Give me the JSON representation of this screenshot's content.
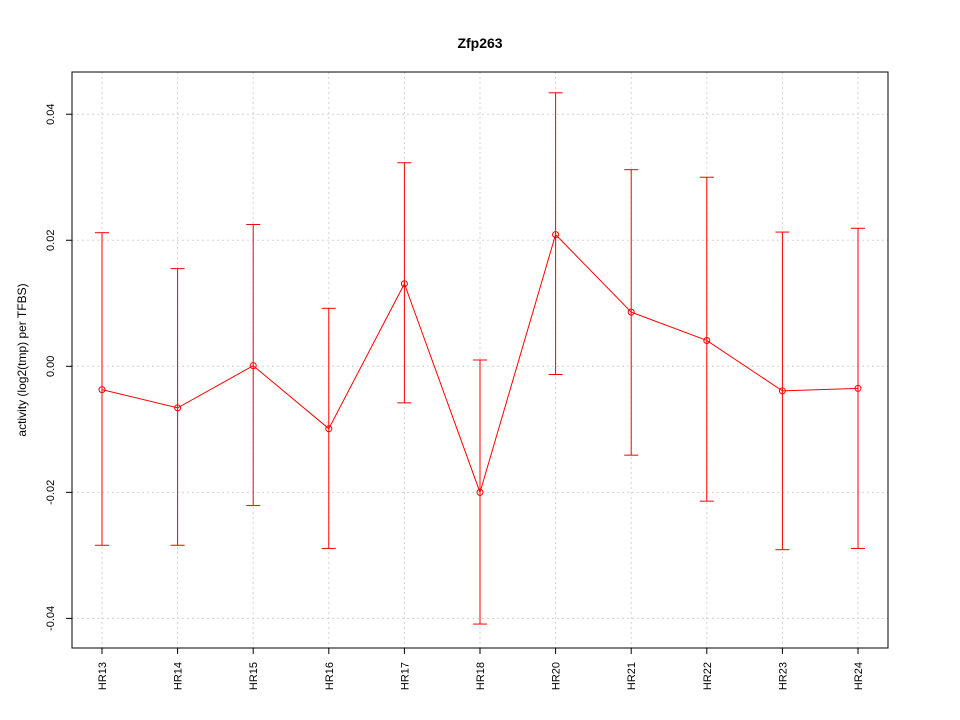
{
  "chart_data": {
    "type": "line",
    "title": "Zfp263",
    "xlabel": "",
    "ylabel": "activity (log2(tmp) per TFBS)",
    "categories": [
      "HR13",
      "HR14",
      "HR15",
      "HR16",
      "HR17",
      "HR18",
      "HR20",
      "HR21",
      "HR22",
      "HR23",
      "HR24"
    ],
    "series": [
      {
        "values": [
          -0.0037,
          -0.0066,
          0.0001,
          -0.0099,
          0.0131,
          -0.02,
          0.0209,
          0.0086,
          0.0041,
          -0.0039,
          -0.0035
        ],
        "error_upper": [
          0.0212,
          0.0155,
          0.0225,
          0.0092,
          0.0323,
          0.001,
          0.0434,
          0.0312,
          0.03,
          0.0213,
          0.0219
        ],
        "error_lower": [
          -0.0284,
          -0.0284,
          -0.0221,
          -0.0289,
          -0.0058,
          -0.0409,
          -0.0013,
          -0.0141,
          -0.0214,
          -0.0291,
          -0.0289
        ]
      }
    ],
    "yticks": [
      -0.04,
      -0.02,
      0.0,
      0.02,
      0.04
    ],
    "ytick_labels": [
      "-0.04",
      "-0.02",
      "0.00",
      "0.02",
      "0.04"
    ],
    "ylim": [
      -0.0447,
      0.0467
    ],
    "grid": true,
    "legend": "none",
    "colors": {
      "series": "#ff0000",
      "grid": "#d3d3d3",
      "axis": "#000000"
    }
  }
}
